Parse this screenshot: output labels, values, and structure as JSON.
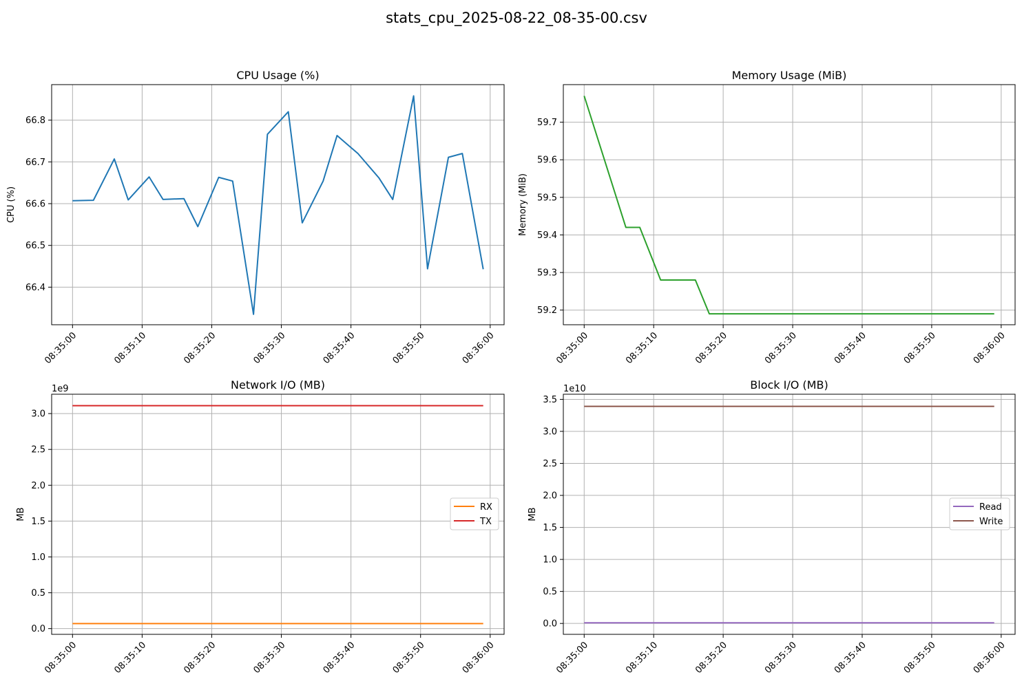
{
  "figure": {
    "suptitle": "stats_cpu_2025-08-22_08-35-00.csv",
    "x_tick_labels": [
      "08:35:00",
      "08:35:10",
      "08:35:20",
      "08:35:30",
      "08:35:40",
      "08:35:50",
      "08:36:00"
    ]
  },
  "chart_data": [
    {
      "id": "cpu",
      "type": "line",
      "title": "CPU Usage (%)",
      "xlabel": "",
      "ylabel": "CPU (%)",
      "x_unit": "seconds after 08:35:00",
      "xlim": [
        -3,
        62
      ],
      "ylim": [
        66.31,
        66.885
      ],
      "yticks": [
        66.4,
        66.5,
        66.6,
        66.7,
        66.8
      ],
      "ytick_labels": [
        "66.4",
        "66.5",
        "66.6",
        "66.7",
        "66.8"
      ],
      "offset_label": "",
      "grid": true,
      "legend": null,
      "series": [
        {
          "color": "#1f77b4",
          "x": [
            0,
            3,
            6,
            8,
            11,
            13,
            16,
            18,
            21,
            23,
            26,
            28,
            31,
            33,
            36,
            38,
            41,
            44,
            46,
            49,
            51,
            54,
            56,
            59
          ],
          "y": [
            66.607,
            66.608,
            66.707,
            66.609,
            66.664,
            66.61,
            66.612,
            66.545,
            66.663,
            66.654,
            66.335,
            66.766,
            66.82,
            66.554,
            66.654,
            66.763,
            66.72,
            66.662,
            66.61,
            66.858,
            66.444,
            66.711,
            66.72,
            66.443
          ]
        }
      ]
    },
    {
      "id": "mem",
      "type": "line",
      "title": "Memory Usage (MiB)",
      "xlabel": "",
      "ylabel": "Memory (MiB)",
      "x_unit": "seconds after 08:35:00",
      "xlim": [
        -3,
        62
      ],
      "ylim": [
        59.161,
        59.8
      ],
      "yticks": [
        59.2,
        59.3,
        59.4,
        59.5,
        59.6,
        59.7
      ],
      "ytick_labels": [
        "59.2",
        "59.3",
        "59.4",
        "59.5",
        "59.6",
        "59.7"
      ],
      "offset_label": "",
      "grid": true,
      "legend": null,
      "series": [
        {
          "color": "#2ca02c",
          "x": [
            0,
            6,
            8,
            11,
            16,
            18,
            59
          ],
          "y": [
            59.77,
            59.42,
            59.42,
            59.28,
            59.28,
            59.19,
            59.19
          ]
        }
      ]
    },
    {
      "id": "net",
      "type": "line",
      "title": "Network I/O (MB)",
      "xlabel": "",
      "ylabel": "MB",
      "x_unit": "seconds after 08:35:00",
      "xlim": [
        -3,
        62
      ],
      "ylim": [
        -0.08,
        3.27
      ],
      "yticks": [
        0.0,
        0.5,
        1.0,
        1.5,
        2.0,
        2.5,
        3.0
      ],
      "ytick_labels": [
        "0.0",
        "0.5",
        "1.0",
        "1.5",
        "2.0",
        "2.5",
        "3.0"
      ],
      "offset_label": "1e9",
      "grid": true,
      "legend": "center right",
      "series": [
        {
          "name": "RX",
          "color": "#ff7f0e",
          "x": [
            0,
            59
          ],
          "y": [
            0.07,
            0.07
          ]
        },
        {
          "name": "TX",
          "color": "#d62728",
          "x": [
            0,
            59
          ],
          "y": [
            3.11,
            3.11
          ]
        }
      ]
    },
    {
      "id": "blk",
      "type": "line",
      "title": "Block I/O (MB)",
      "xlabel": "",
      "ylabel": "MB",
      "x_unit": "seconds after 08:35:00",
      "xlim": [
        -3,
        62
      ],
      "ylim": [
        -0.17,
        3.58
      ],
      "yticks": [
        0.0,
        0.5,
        1.0,
        1.5,
        2.0,
        2.5,
        3.0,
        3.5
      ],
      "ytick_labels": [
        "0.0",
        "0.5",
        "1.0",
        "1.5",
        "2.0",
        "2.5",
        "3.0",
        "3.5"
      ],
      "offset_label": "1e10",
      "grid": true,
      "legend": "center right",
      "series": [
        {
          "name": "Read",
          "color": "#9467bd",
          "x": [
            0,
            59
          ],
          "y": [
            0.01,
            0.01
          ]
        },
        {
          "name": "Write",
          "color": "#8c564b",
          "x": [
            0,
            59
          ],
          "y": [
            3.39,
            3.39
          ]
        }
      ]
    }
  ]
}
